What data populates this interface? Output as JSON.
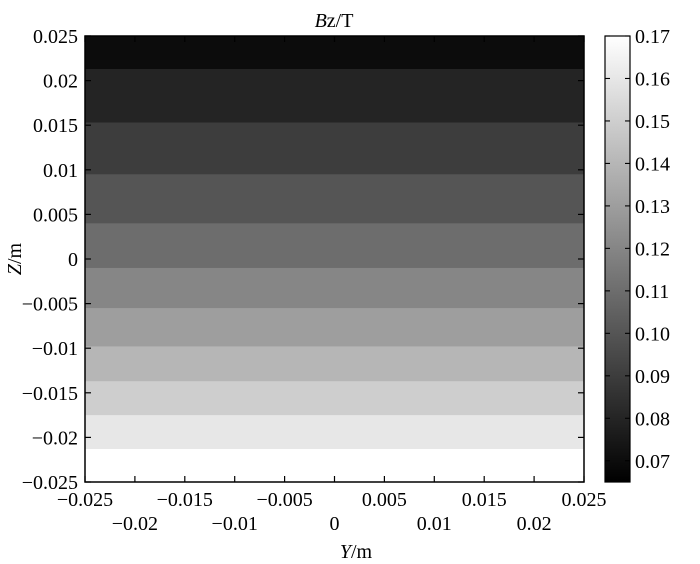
{
  "chart_data": {
    "type": "heatmap",
    "title": "Bz/T",
    "title_italic_part": "B",
    "title_rest": "z/T",
    "xlabel": "Y/m",
    "xlabel_italic_part": "Y",
    "xlabel_rest": "/m",
    "ylabel": "Z/m",
    "ylabel_italic_part": "Z",
    "ylabel_rest": "/m",
    "xlim": [
      -0.025,
      0.025
    ],
    "ylim": [
      -0.025,
      0.025
    ],
    "x_ticks_top_row": [
      "-0.025",
      "-0.015",
      "-0.005",
      "0.005",
      "0.015",
      "0.025"
    ],
    "x_ticks_top_row_values": [
      -0.025,
      -0.015,
      -0.005,
      0.005,
      0.015,
      0.025
    ],
    "x_ticks_bottom_row": [
      "-0.02",
      "-0.01",
      "0",
      "0.01",
      "0.02"
    ],
    "x_ticks_bottom_row_values": [
      -0.02,
      -0.01,
      0,
      0.01,
      0.02
    ],
    "y_ticks": [
      "0.025",
      "0.02",
      "0.015",
      "0.01",
      "0.005",
      "0",
      "-0.005",
      "-0.01",
      "-0.015",
      "-0.02",
      "-0.025"
    ],
    "y_ticks_values": [
      0.025,
      0.02,
      0.015,
      0.01,
      0.005,
      0,
      -0.005,
      -0.01,
      -0.015,
      -0.02,
      -0.025
    ],
    "colorbar": {
      "range": [
        0.065,
        0.17
      ],
      "ticks": [
        "0.17",
        "0.16",
        "0.15",
        "0.14",
        "0.13",
        "0.12",
        "0.11",
        "0.10",
        "0.09",
        "0.08",
        "0.07"
      ],
      "ticks_values": [
        0.17,
        0.16,
        0.15,
        0.14,
        0.13,
        0.12,
        0.11,
        0.1,
        0.09,
        0.08,
        0.07
      ],
      "color_low": "#000000",
      "color_high": "#ffffff"
    },
    "contour_levels": [
      {
        "z_lower": 0.0213,
        "z_upper": 0.025,
        "bz": 0.07
      },
      {
        "z_lower": 0.0153,
        "z_upper": 0.0213,
        "bz": 0.08
      },
      {
        "z_lower": 0.0095,
        "z_upper": 0.0153,
        "bz": 0.09
      },
      {
        "z_lower": 0.004,
        "z_upper": 0.0095,
        "bz": 0.1
      },
      {
        "z_lower": -0.001,
        "z_upper": 0.004,
        "bz": 0.11
      },
      {
        "z_lower": -0.0055,
        "z_upper": -0.001,
        "bz": 0.12
      },
      {
        "z_lower": -0.0098,
        "z_upper": -0.0055,
        "bz": 0.13
      },
      {
        "z_lower": -0.0137,
        "z_upper": -0.0098,
        "bz": 0.14
      },
      {
        "z_lower": -0.0175,
        "z_upper": -0.0137,
        "bz": 0.15
      },
      {
        "z_lower": -0.0213,
        "z_upper": -0.0175,
        "bz": 0.16
      },
      {
        "z_lower": -0.025,
        "z_upper": -0.0213,
        "bz": 0.17
      }
    ]
  }
}
